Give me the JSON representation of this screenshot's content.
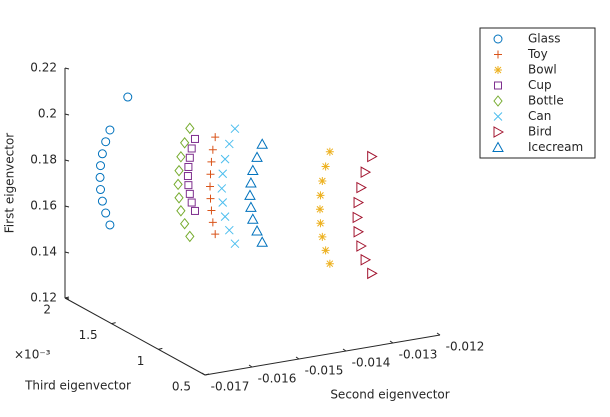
{
  "chart_data": {
    "type": "scatter3d",
    "xlabel": "Second eigenvector",
    "ylabel": "Third eigenvector",
    "zlabel": "First eigenvector",
    "y_exponent": "×10⁻³",
    "xlim": [
      -0.017,
      -0.012
    ],
    "xticks": [
      -0.017,
      -0.016,
      -0.015,
      -0.014,
      -0.013,
      -0.012
    ],
    "ylim": [
      0.0005,
      0.002
    ],
    "yticks": [
      {
        "value": 0.0005,
        "label": "0.5"
      },
      {
        "value": 0.001,
        "label": "1"
      },
      {
        "value": 0.0015,
        "label": "1.5"
      },
      {
        "value": 0.002,
        "label": "2"
      }
    ],
    "zlim": [
      0.12,
      0.22
    ],
    "zticks": [
      0.12,
      0.14,
      0.16,
      0.18,
      0.2,
      0.22
    ],
    "legend": "outside-top-right",
    "series": [
      {
        "name": "Glass",
        "color": "#0072bd",
        "marker": "circle",
        "x": [
          -0.01664,
          -0.01673,
          -0.0168,
          -0.01684,
          -0.01685,
          -0.01684,
          -0.0168,
          -0.01673,
          -0.01664,
          -0.01626
        ],
        "y": [
          0.0017,
          0.0017,
          0.0017,
          0.0017,
          0.0017,
          0.0017,
          0.0017,
          0.0017,
          0.0017,
          0.0017
        ],
        "z": [
          0.1985,
          0.1937,
          0.1887,
          0.1837,
          0.1786,
          0.1733,
          0.1681,
          0.1627,
          0.1572,
          0.2115
        ]
      },
      {
        "name": "Toy",
        "color": "#d95319",
        "marker": "plus",
        "x": [
          -0.0144,
          -0.01445,
          -0.01448,
          -0.0145,
          -0.01451,
          -0.0145,
          -0.01448,
          -0.01445,
          -0.0144
        ],
        "y": [
          0.0017,
          0.0017,
          0.0017,
          0.0017,
          0.0017,
          0.0017,
          0.0017,
          0.0017,
          0.0017
        ],
        "z": [
          0.1876,
          0.1823,
          0.1771,
          0.1718,
          0.1665,
          0.1612,
          0.156,
          0.1507,
          0.1454
        ]
      },
      {
        "name": "Bowl",
        "color": "#edb120",
        "marker": "asterisk",
        "x": [
          -0.01345,
          -0.01354,
          -0.01361,
          -0.01365,
          -0.01366,
          -0.01365,
          -0.01361,
          -0.01354,
          -0.01345
        ],
        "y": [
          0.00095,
          0.00095,
          0.00095,
          0.00095,
          0.00095,
          0.00095,
          0.00095,
          0.00095,
          0.00095
        ],
        "z": [
          0.1947,
          0.1886,
          0.1825,
          0.1764,
          0.1704,
          0.1643,
          0.1582,
          0.1521,
          0.146
        ]
      },
      {
        "name": "Cup",
        "color": "#7e2f8e",
        "marker": "square",
        "x": [
          -0.01483,
          -0.0149,
          -0.01494,
          -0.01497,
          -0.01498,
          -0.01497,
          -0.01494,
          -0.0149,
          -0.01483
        ],
        "y": [
          0.0017,
          0.0017,
          0.0017,
          0.0017,
          0.0017,
          0.0017,
          0.0017,
          0.0017,
          0.0017
        ],
        "z": [
          0.1883,
          0.1844,
          0.1805,
          0.1766,
          0.1727,
          0.1687,
          0.1648,
          0.1609,
          0.157
        ]
      },
      {
        "name": "Bottle",
        "color": "#77ac30",
        "marker": "diamond",
        "x": [
          -0.01494,
          -0.01505,
          -0.01513,
          -0.01517,
          -0.01519,
          -0.01517,
          -0.01513,
          -0.01505,
          -0.01494
        ],
        "y": [
          0.0017,
          0.0017,
          0.0017,
          0.0017,
          0.0017,
          0.0017,
          0.0017,
          0.0017,
          0.0017
        ],
        "z": [
          0.1933,
          0.1874,
          0.1816,
          0.1757,
          0.1698,
          0.1639,
          0.1581,
          0.1522,
          0.1463
        ]
      },
      {
        "name": "Can",
        "color": "#4dbeee",
        "marker": "cross",
        "x": [
          -0.01398,
          -0.0141,
          -0.01419,
          -0.01424,
          -0.01426,
          -0.01424,
          -0.01419,
          -0.0141,
          -0.01398
        ],
        "y": [
          0.0017,
          0.0017,
          0.0017,
          0.0017,
          0.0017,
          0.0017,
          0.0017,
          0.0017,
          0.0017
        ],
        "z": [
          0.1898,
          0.1836,
          0.1773,
          0.1711,
          0.1648,
          0.1586,
          0.1523,
          0.1461,
          0.1398
        ]
      },
      {
        "name": "Bird",
        "color": "#a2142f",
        "marker": "triangle-right",
        "x": [
          -0.01256,
          -0.0127,
          -0.01279,
          -0.01285,
          -0.01287,
          -0.01285,
          -0.01279,
          -0.0127,
          -0.01256
        ],
        "y": [
          0.00095,
          0.00095,
          0.00095,
          0.00095,
          0.00095,
          0.00095,
          0.00095,
          0.00095,
          0.00095
        ],
        "z": [
          0.1895,
          0.1832,
          0.1768,
          0.1705,
          0.1641,
          0.1578,
          0.1514,
          0.1451,
          0.1387
        ]
      },
      {
        "name": "Icecream",
        "color": "#0072bd",
        "marker": "triangle-up",
        "x": [
          -0.0134,
          -0.01351,
          -0.0136,
          -0.01364,
          -0.01366,
          -0.01364,
          -0.0136,
          -0.01351,
          -0.0134
        ],
        "y": [
          0.0017,
          0.0017,
          0.0017,
          0.0017,
          0.0017,
          0.0017,
          0.0017,
          0.0017,
          0.0017
        ],
        "z": [
          0.181,
          0.1757,
          0.1703,
          0.165,
          0.1597,
          0.1544,
          0.1491,
          0.1437,
          0.1384
        ]
      }
    ]
  }
}
